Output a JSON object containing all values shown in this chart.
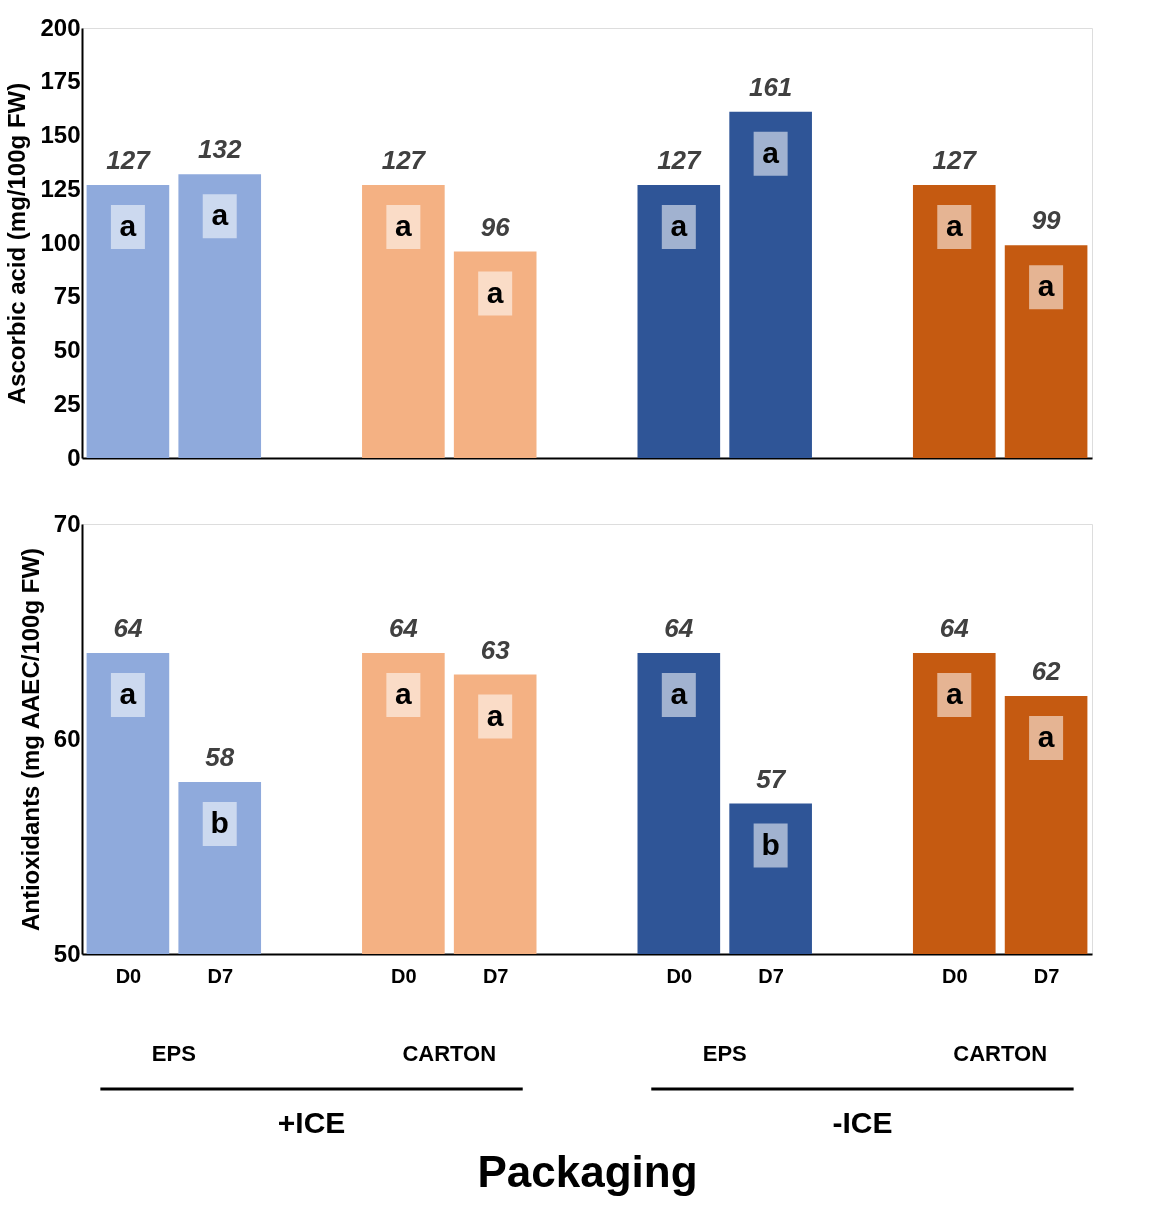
{
  "chart_data": [
    {
      "type": "bar",
      "ylabel": "Ascorbic acid (mg/100g  FW)",
      "categories": [
        null,
        null,
        null,
        null,
        null,
        null,
        null,
        null,
        null,
        null,
        null
      ],
      "values": [
        127,
        132,
        null,
        127,
        96,
        null,
        127,
        161,
        null,
        127,
        99
      ],
      "colors": [
        "#8faadc",
        "#8faadc",
        "#ffffff",
        "#f4b183",
        "#f4b183",
        "#ffffff",
        "#2f5597",
        "#2f5597",
        "#ffffff",
        "#c55a11",
        "#c55a11"
      ],
      "ylim": [
        0,
        200
      ],
      "yticks": [
        0,
        25,
        50,
        75,
        100,
        125,
        150,
        175,
        200
      ],
      "data_labels": true,
      "grid": false,
      "tick_labels": "y",
      "annotations": [
        "a",
        "a",
        "a",
        "a",
        "a",
        "a",
        "a",
        "a"
      ]
    },
    {
      "type": "bar",
      "ylabel": "Antioxidants (mg AAEC/100g FW)",
      "xlabel": "Packaging",
      "categories": [
        "D0",
        "D7",
        null,
        "D0",
        "D7",
        null,
        "D0",
        "D7",
        null,
        "D0",
        "D7"
      ],
      "values": [
        64,
        58,
        null,
        64,
        63,
        null,
        64,
        57,
        null,
        64,
        62
      ],
      "colors": [
        "#8faadc",
        "#8faadc",
        "#ffffff",
        "#f4b183",
        "#f4b183",
        "#ffffff",
        "#2f5597",
        "#2f5597",
        "#ffffff",
        "#c55a11",
        "#c55a11"
      ],
      "ylim": [
        50,
        70
      ],
      "yticks": [
        50,
        60,
        70
      ],
      "data_labels": true,
      "grid": false,
      "annotations": [
        "a",
        "b",
        "a",
        "a",
        "a",
        "b",
        "a",
        "a",
        "EPS",
        "CARTON",
        "EPS",
        "CARTON",
        "+ICE",
        "-ICE"
      ]
    }
  ]
}
